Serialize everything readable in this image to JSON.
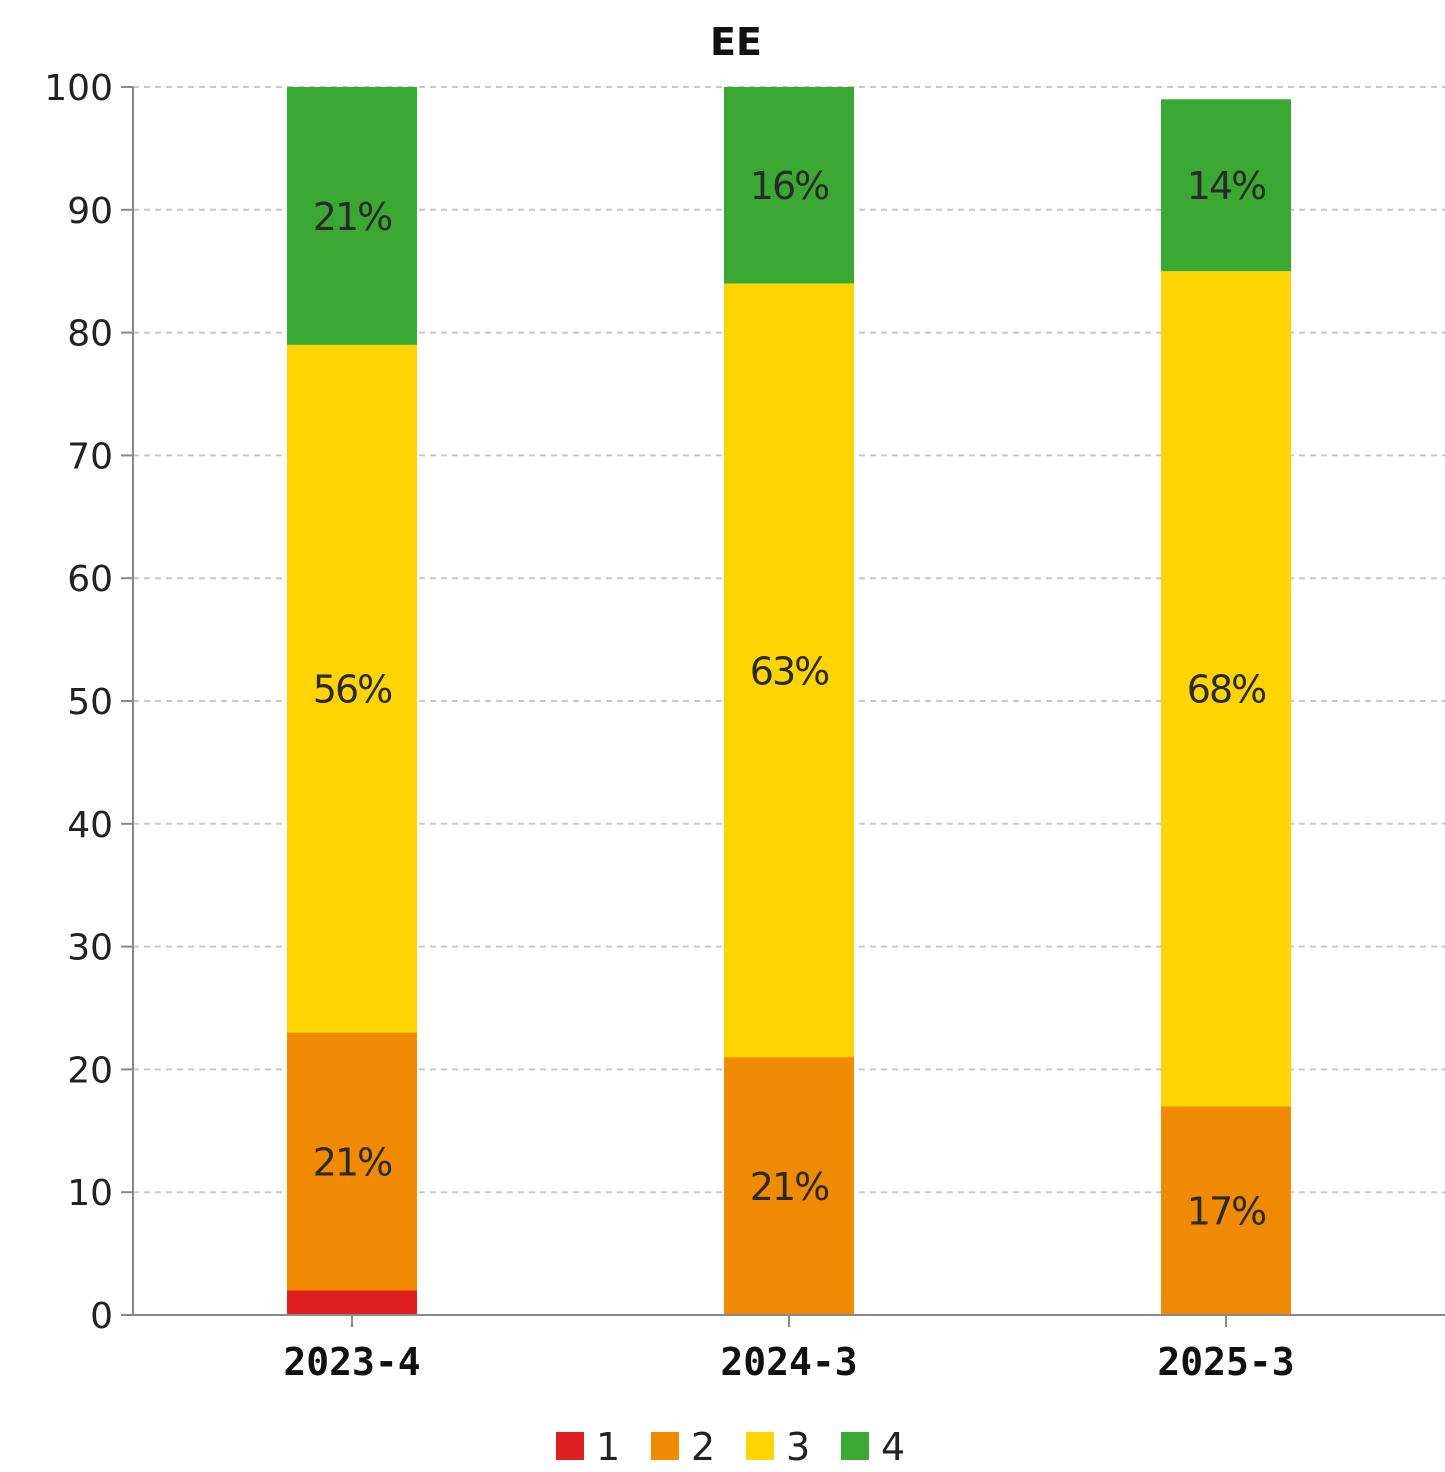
{
  "chart_data": {
    "type": "bar",
    "stacked": true,
    "title": "EE",
    "xlabel": "",
    "ylabel": "",
    "ylim": [
      0,
      100
    ],
    "yticks": [
      0,
      10,
      20,
      30,
      40,
      50,
      60,
      70,
      80,
      90,
      100
    ],
    "grid": true,
    "legend_position": "bottom",
    "categories": [
      "2023-4",
      "2024-3",
      "2025-3"
    ],
    "series": [
      {
        "name": "1",
        "color": "#dd1f1f",
        "values": [
          2,
          0,
          0
        ],
        "labels": [
          "",
          "",
          ""
        ]
      },
      {
        "name": "2",
        "color": "#f08a00",
        "values": [
          21,
          21,
          17
        ],
        "labels": [
          "21%",
          "21%",
          "17%"
        ]
      },
      {
        "name": "3",
        "color": "#ffd400",
        "values": [
          56,
          63,
          68
        ],
        "labels": [
          "56%",
          "63%",
          "68%"
        ]
      },
      {
        "name": "4",
        "color": "#3aa832",
        "values": [
          21,
          16,
          14
        ],
        "labels": [
          "21%",
          "16%",
          "14%"
        ]
      }
    ]
  }
}
